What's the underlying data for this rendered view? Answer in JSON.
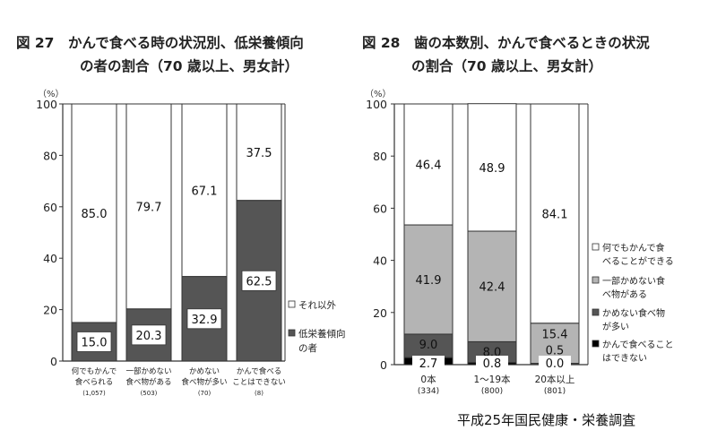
{
  "page": {
    "source": "平成25年国民健康・栄養調査"
  },
  "chart_data": [
    {
      "type": "bar",
      "stacked": true,
      "title_line1": "図 27　かんで食べる時の状況別、低栄養傾向",
      "title_line2": "の者の割合（70 歳以上、男女計）",
      "ylabel": "（%）",
      "ylim": [
        0,
        100
      ],
      "yticks": [
        0,
        20,
        40,
        60,
        80,
        100
      ],
      "categories": [
        {
          "label_line1": "何でもかんで",
          "label_line2": "食べられる",
          "n": "(1,057)"
        },
        {
          "label_line1": "一部かめない",
          "label_line2": "食べ物がある",
          "n": "(503)"
        },
        {
          "label_line1": "かめない",
          "label_line2": "食べ物が多い",
          "n": "(70)"
        },
        {
          "label_line1": "かんで食べる",
          "label_line2": "ことはできない",
          "n": "(8)"
        }
      ],
      "series": [
        {
          "name": "低栄養傾向の者",
          "name_line1": "低栄養傾向",
          "name_line2": "の者",
          "color": "#555555",
          "values": [
            15.0,
            20.3,
            32.9,
            62.5
          ]
        },
        {
          "name": "それ以外",
          "color": "#ffffff",
          "values": [
            85.0,
            79.7,
            67.1,
            37.5
          ]
        }
      ],
      "legend_position": "right"
    },
    {
      "type": "bar",
      "stacked": true,
      "title_line1": "図 28　歯の本数別、かんで食べるときの状況",
      "title_line2": "の割合（70 歳以上、男女計）",
      "ylabel": "（%）",
      "ylim": [
        0,
        100
      ],
      "yticks": [
        0,
        20,
        40,
        60,
        80,
        100
      ],
      "categories": [
        {
          "label_line1": "0本",
          "n": "(334)"
        },
        {
          "label_line1": "1～19本",
          "n": "(800)"
        },
        {
          "label_line1": "20本以上",
          "n": "(801)"
        }
      ],
      "series": [
        {
          "name": "かんで食べることはできない",
          "name_line1": "かんで食べること",
          "name_line2": "はできない",
          "color": "#000000",
          "values": [
            2.7,
            0.8,
            0.0
          ]
        },
        {
          "name": "かめない食べ物が多い",
          "name_line1": "かめない食べ物",
          "name_line2": "が多い",
          "color": "#555555",
          "values": [
            9.0,
            8.0,
            0.5
          ]
        },
        {
          "name": "一部かめない食べ物がある",
          "name_line1": "一部かめない食",
          "name_line2": "べ物がある",
          "color": "#b4b4b4",
          "values": [
            41.9,
            42.4,
            15.4
          ]
        },
        {
          "name": "何でもかんで食べることができる",
          "name_line1": "何でもかんで食",
          "name_line2": "べることができる",
          "color": "#ffffff",
          "values": [
            46.4,
            48.9,
            84.1
          ]
        }
      ],
      "legend_position": "right"
    }
  ]
}
